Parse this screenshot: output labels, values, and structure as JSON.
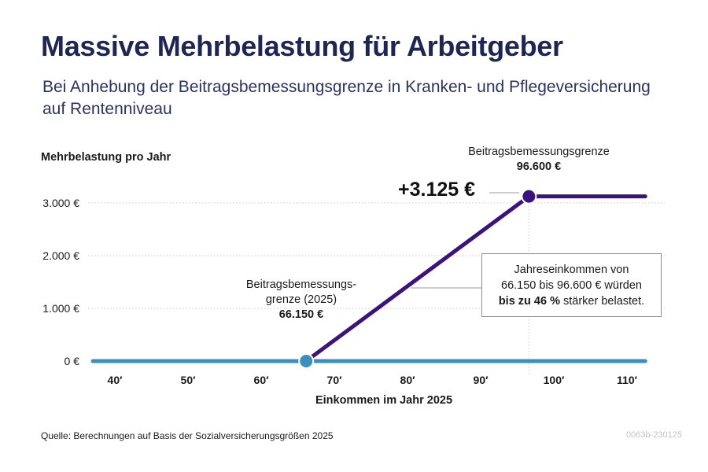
{
  "header": {
    "title": "Massive Mehrbelastung für Arbeitgeber",
    "subtitle": "Bei Anhebung der Beitragsbemessungsgrenze in Kranken- und Pflegeversicherung auf Rentenniveau"
  },
  "footer": {
    "source": "Quelle: Berechnungen auf Basis der Sozialversicherungsgrößen 2025",
    "code": "0063b-230125"
  },
  "annotations": {
    "delta": "+3.125 €",
    "left_line1": "Beitragsbemessungs-",
    "left_line2": "grenze (2025)",
    "left_value": "66.150 €",
    "right_line1": "Beitragsbemessungsgrenze",
    "right_value": "96.600 €",
    "box_line1": "Jahreseinkommen von",
    "box_line2": "66.150 bis 96.600 € würden",
    "box_bold": "bis zu 46 %",
    "box_rest": " stärker belastet."
  },
  "colors": {
    "current": "#3b8fc0",
    "raised": "#3b1381",
    "grid": "#c9c9c9",
    "title": "#1e2656"
  },
  "chart_data": {
    "type": "line",
    "title": "Massive Mehrbelastung für Arbeitgeber",
    "ylabel": "Mehrbelastung pro Jahr",
    "xlabel": "Einkommen im Jahr 2025",
    "xlim": [
      36000,
      113000
    ],
    "ylim": [
      0,
      3300
    ],
    "x_ticks": [
      40000,
      50000,
      60000,
      70000,
      80000,
      90000,
      100000,
      110000
    ],
    "x_tick_labels": [
      "40′",
      "50′",
      "60′",
      "70′",
      "80′",
      "90′",
      "100′",
      "110′"
    ],
    "y_ticks": [
      0,
      1000,
      2000,
      3000
    ],
    "y_tick_labels": [
      "0 €",
      "1.000 €",
      "2.000 €",
      "3.000 €"
    ],
    "grid": true,
    "series": [
      {
        "points": [
          [
            37000,
            0
          ],
          [
            112500,
            0
          ]
        ]
      },
      {
        "points": [
          [
            66150,
            0
          ],
          [
            96600,
            3125
          ],
          [
            112500,
            3125
          ]
        ]
      }
    ],
    "markers": [
      {
        "x": 66150,
        "y": 0
      },
      {
        "x": 96600,
        "y": 3125
      }
    ],
    "vertical_guide_x": 96600
  }
}
